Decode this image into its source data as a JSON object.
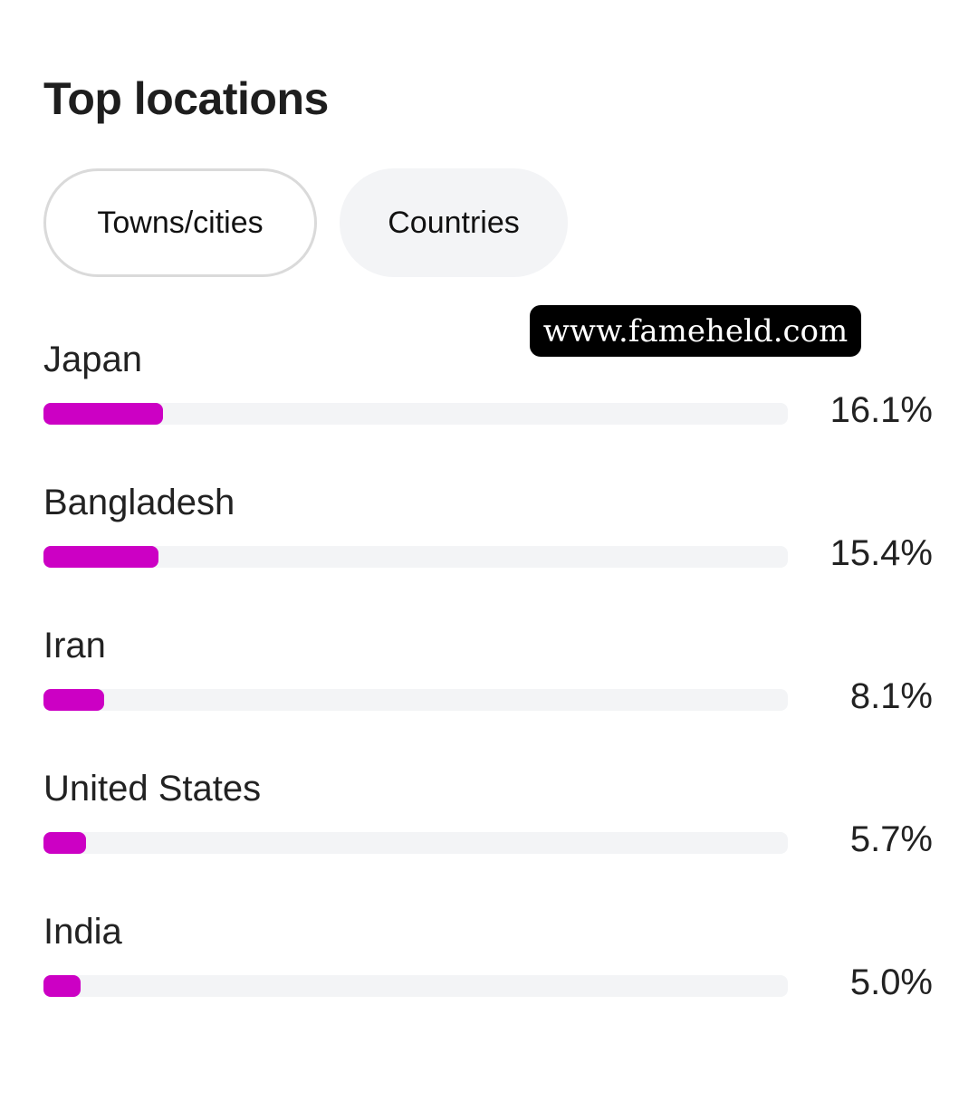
{
  "title": "Top locations",
  "tabs": [
    {
      "label": "Towns/cities",
      "selected": true
    },
    {
      "label": "Countries",
      "selected": false
    }
  ],
  "watermark": "www.fameheld.com",
  "bar_color": "#cc00c4",
  "track_color": "#f3f4f6",
  "locations": [
    {
      "name": "Japan",
      "percent_label": "16.1%",
      "percent": 16.1
    },
    {
      "name": "Bangladesh",
      "percent_label": "15.4%",
      "percent": 15.4
    },
    {
      "name": "Iran",
      "percent_label": "8.1%",
      "percent": 8.1
    },
    {
      "name": "United States",
      "percent_label": "5.7%",
      "percent": 5.7
    },
    {
      "name": "India",
      "percent_label": "5.0%",
      "percent": 5.0
    }
  ]
}
